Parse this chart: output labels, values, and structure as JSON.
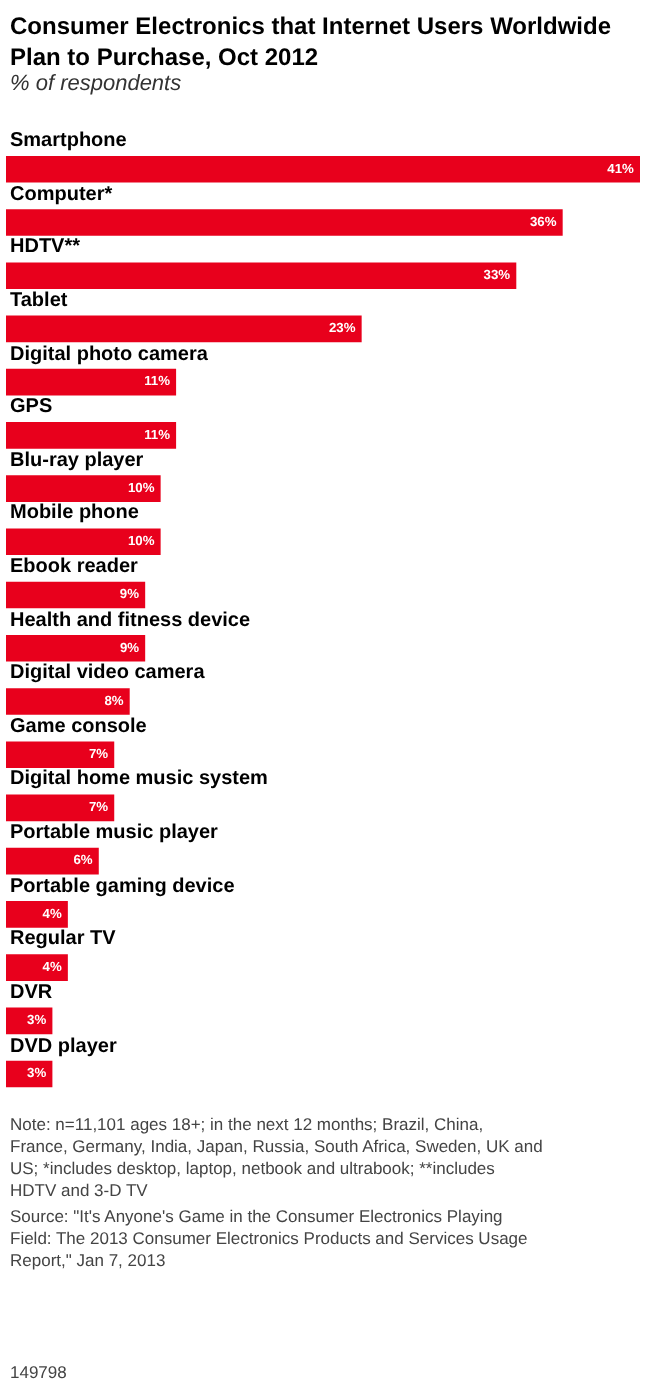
{
  "chart_data": {
    "type": "bar",
    "orientation": "horizontal",
    "title": "Consumer Electronics that Internet Users Worldwide Plan to Purchase, Oct 2012",
    "subtitle": "% of respondents",
    "categories": [
      "Smartphone",
      "Computer*",
      "HDTV**",
      "Tablet",
      "Digital photo camera",
      "GPS",
      "Blu-ray player",
      "Mobile phone",
      "Ebook reader",
      "Health and fitness device",
      "Digital video camera",
      "Game console",
      "Digital home music system",
      "Portable music player",
      "Portable gaming device",
      "Regular TV",
      "DVR",
      "DVD player"
    ],
    "values": [
      41,
      36,
      33,
      23,
      11,
      11,
      10,
      10,
      9,
      9,
      8,
      7,
      7,
      6,
      4,
      4,
      3,
      3
    ],
    "value_labels": [
      "41%",
      "36%",
      "33%",
      "23%",
      "11%",
      "11%",
      "10%",
      "10%",
      "9%",
      "9%",
      "8%",
      "7%",
      "7%",
      "6%",
      "4%",
      "4%",
      "3%",
      "3%"
    ],
    "color": "#e8001c",
    "xlim": [
      0,
      41
    ],
    "tick_labels": false,
    "annotations": [
      "Note: n=11,101 ages 18+; in the next 12 months; Brazil, China, France, Germany, India, Japan, Russia, South Africa, Sweden, UK and US; *includes desktop, laptop, netbook and ultrabook; **includes HDTV and 3-D TV",
      "Source: \"It's Anyone's Game in the Consumer Electronics Playing Field: The 2013 Consumer Electronics Products and Services Usage Report,\" Jan 7, 2013",
      "149798"
    ]
  }
}
